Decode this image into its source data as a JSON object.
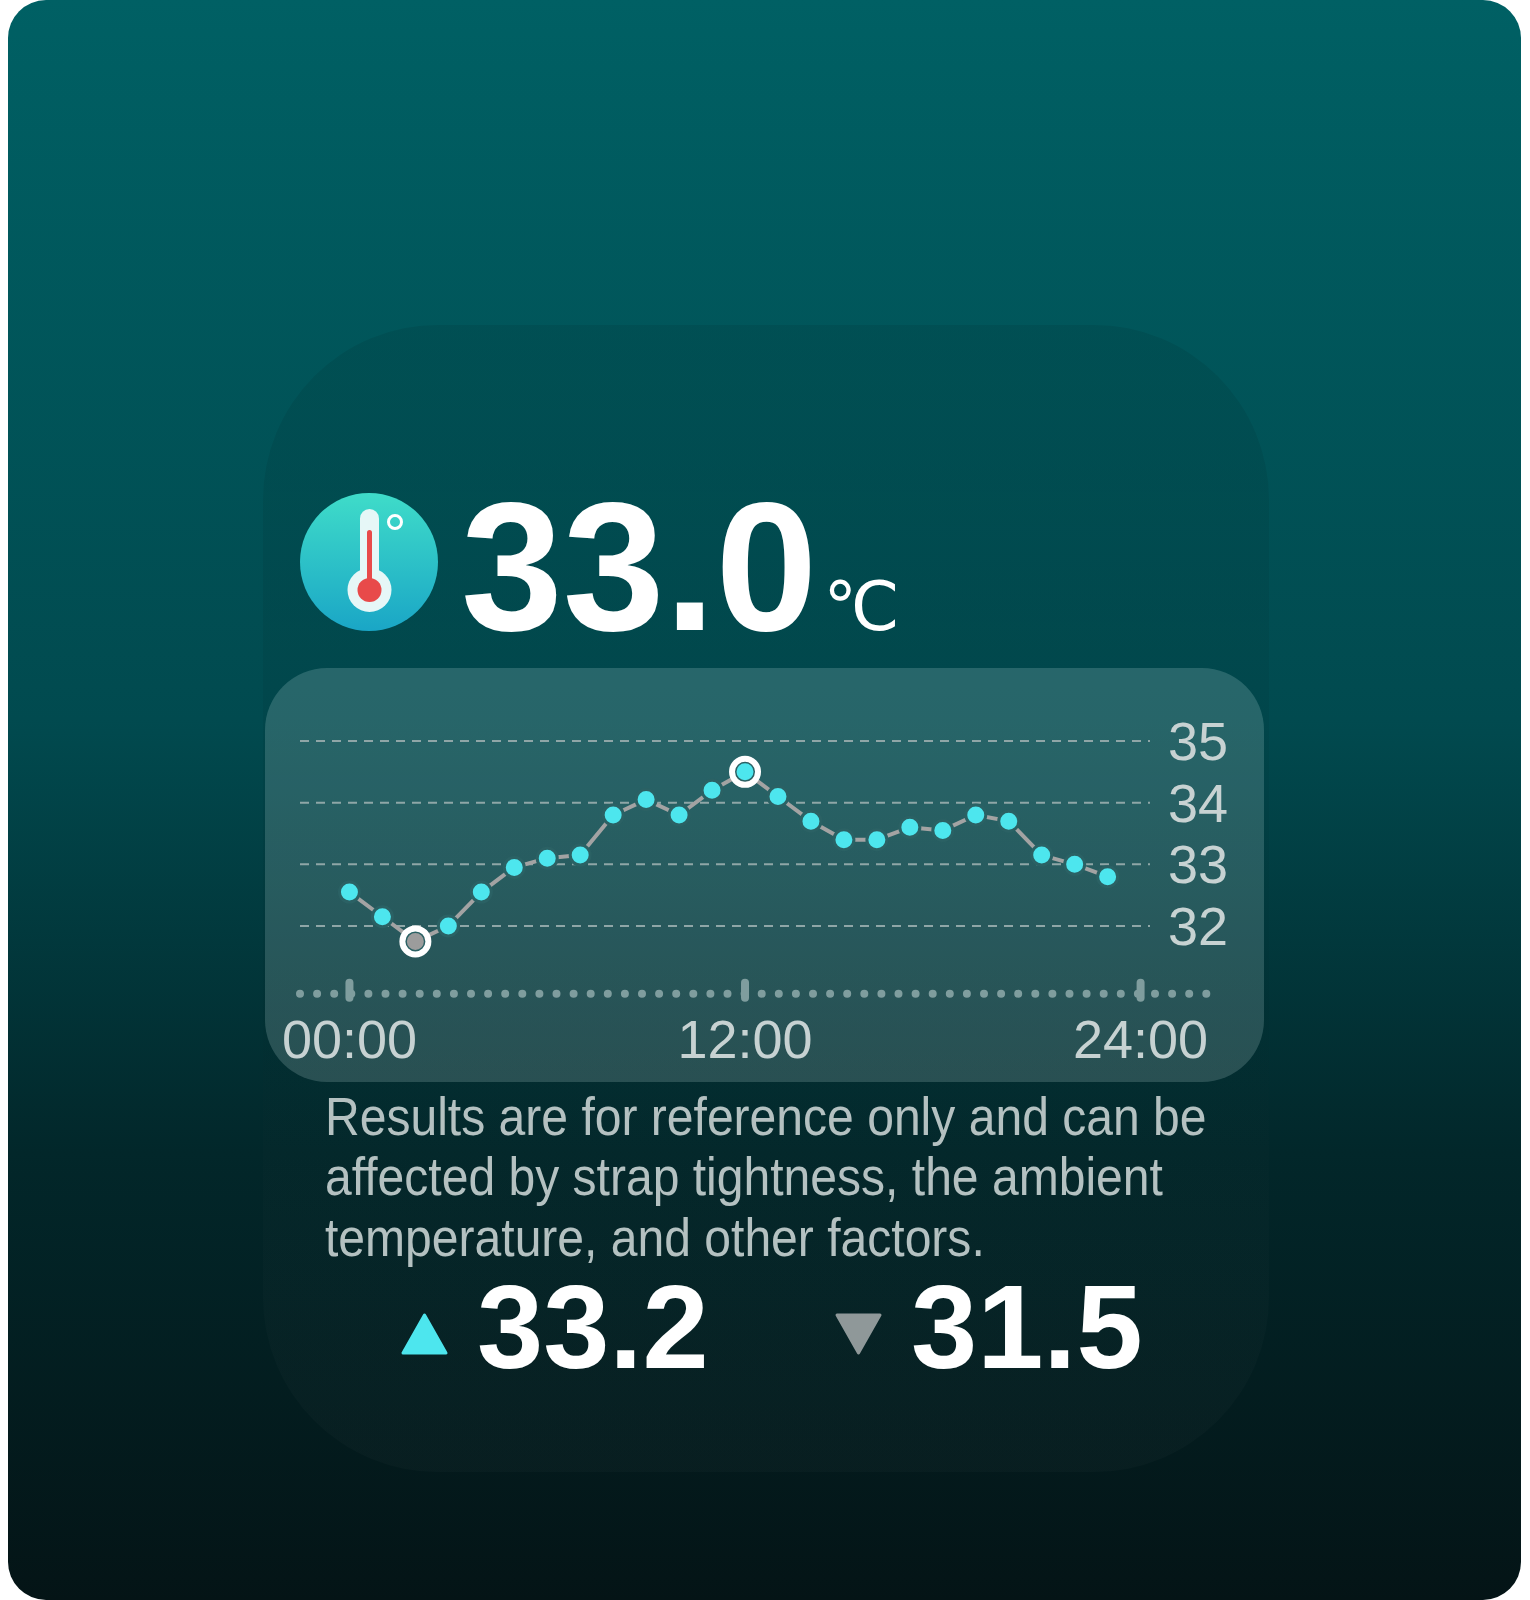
{
  "chart_data": {
    "type": "line",
    "title": "33.0℃",
    "annotations": [
      "Results are for reference only and can be affected by strap tightness, the ambient temperature, and other factors.",
      "33.2",
      "31.5"
    ],
    "x": [
      0,
      1,
      2,
      3,
      4,
      5,
      6,
      7,
      8,
      9,
      10,
      11,
      12,
      13,
      14,
      15,
      16,
      17,
      18,
      19,
      20,
      21,
      22,
      23
    ],
    "series": [
      {
        "color": "#a3a3a3",
        "colors": [
          "#4de6ee",
          "#4de6ee",
          "#9c9c9c",
          "#4de6ee",
          "#4de6ee",
          "#4de6ee",
          "#4de6ee",
          "#4de6ee",
          "#4de6ee",
          "#4de6ee",
          "#4de6ee",
          "#4de6ee",
          "#4de6ee",
          "#4de6ee",
          "#4de6ee",
          "#4de6ee",
          "#4de6ee",
          "#4de6ee",
          "#4de6ee",
          "#4de6ee",
          "#4de6ee",
          "#4de6ee",
          "#4de6ee",
          "#4de6ee"
        ],
        "values": [
          32.55,
          32.15,
          31.75,
          32,
          32.55,
          32.95,
          33.1,
          33.15,
          33.8,
          34.05,
          33.8,
          34.2,
          34.5,
          34.1,
          33.7,
          33.4,
          33.4,
          33.6,
          33.55,
          33.8,
          33.7,
          33.15,
          33.0,
          32.8
        ]
      },
      {
        "type": "scatter",
        "x": [
          2,
          12
        ],
        "values": [
          31.75,
          34.5
        ],
        "color": "#ffffff"
      }
    ],
    "xlim": [
      -1.5,
      26.5
    ],
    "xticks": [
      {
        "value": 0,
        "label": "00:00"
      },
      {
        "value": 12,
        "label": "12:00"
      },
      {
        "value": 24,
        "label": "24:00"
      }
    ],
    "ylim": [
      30.9,
      35
    ],
    "yticks": [
      32,
      33,
      34,
      35
    ],
    "grid": "y",
    "marker": "circle",
    "line_style": "solid"
  }
}
